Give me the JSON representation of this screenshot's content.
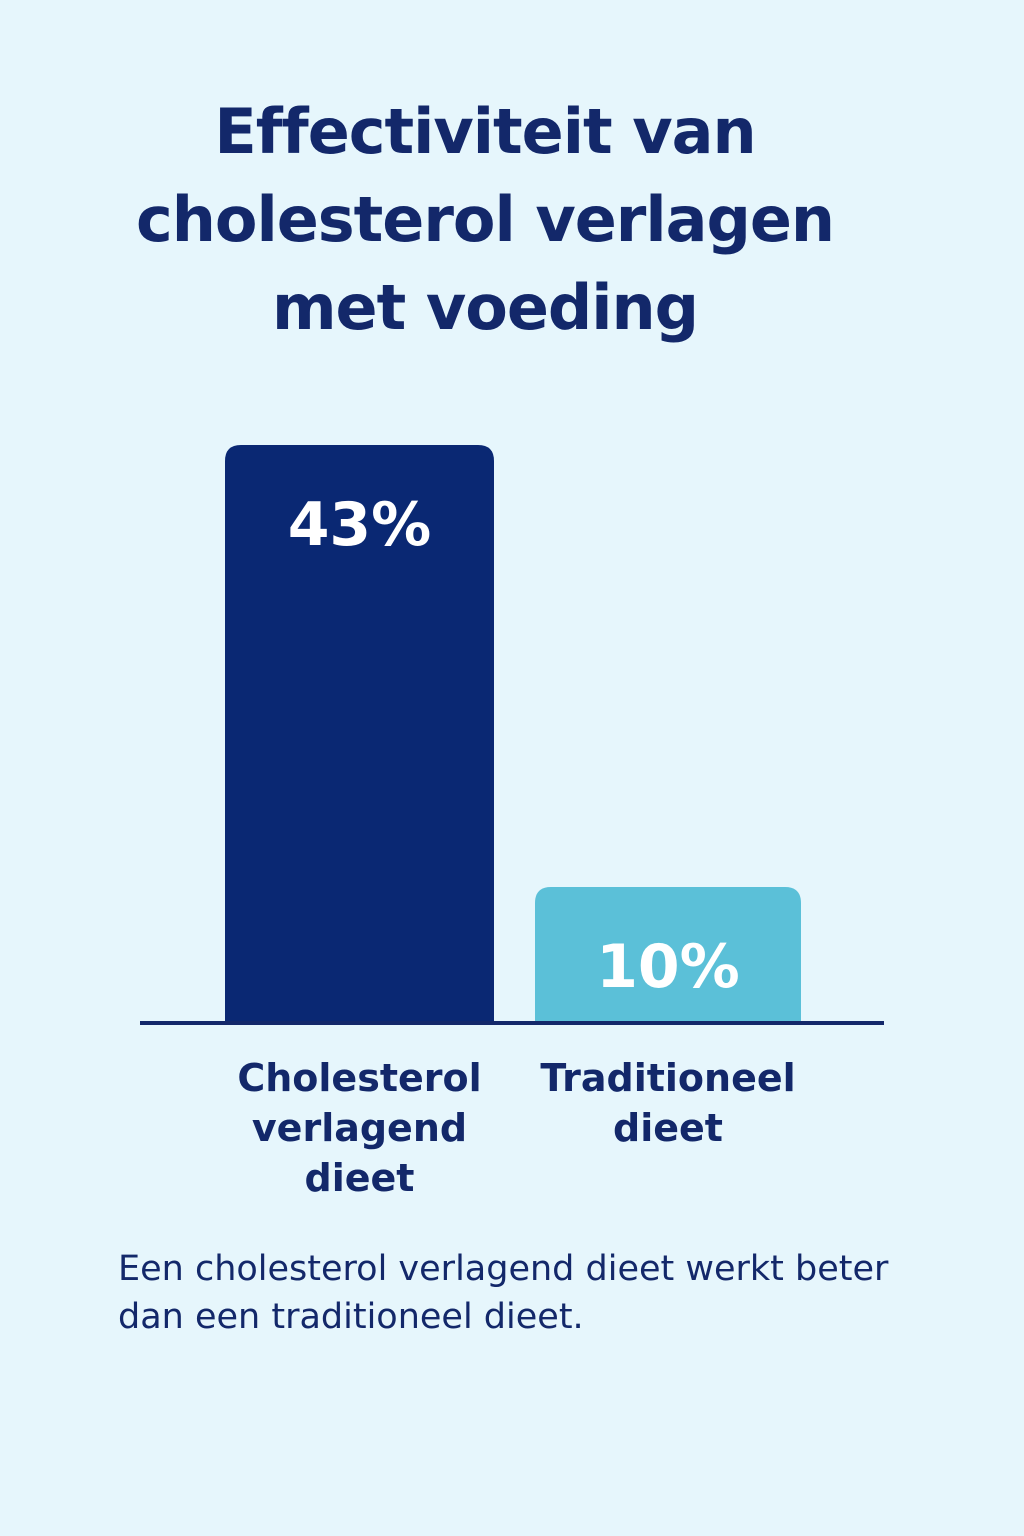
{
  "chart_data": {
    "type": "bar",
    "title": "Effectiviteit van cholesterol verlagen met voeding",
    "categories": [
      "Cholesterol verlagend dieet",
      "Traditioneel dieet"
    ],
    "values": [
      43,
      10
    ],
    "value_labels": [
      "43%",
      "10%"
    ],
    "colors": [
      "#0a2873",
      "#5bc0d8"
    ],
    "caption": "Een cholesterol verlagend dieet werkt beter dan een traditioneel dieet."
  }
}
